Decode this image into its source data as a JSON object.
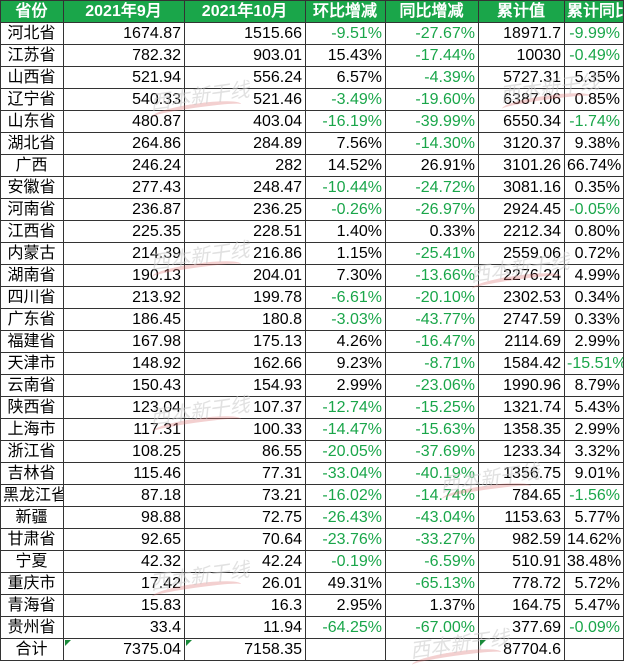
{
  "headers": [
    "省份",
    "2021年9月",
    "2021年10月",
    "环比增减",
    "同比增减",
    "累计值",
    "累计同比"
  ],
  "rows": [
    {
      "prov": "河北省",
      "sep": "1674.87",
      "oct": "1515.66",
      "mom": "-9.51%",
      "yoy": "-27.67%",
      "cum": "18971.7",
      "cum_yoy": "-9.99%"
    },
    {
      "prov": "江苏省",
      "sep": "782.32",
      "oct": "903.01",
      "mom": "15.43%",
      "yoy": "-17.44%",
      "cum": "10030",
      "cum_yoy": "-0.49%"
    },
    {
      "prov": "山西省",
      "sep": "521.94",
      "oct": "556.24",
      "mom": "6.57%",
      "yoy": "-4.39%",
      "cum": "5727.31",
      "cum_yoy": "5.35%"
    },
    {
      "prov": "辽宁省",
      "sep": "540.33",
      "oct": "521.46",
      "mom": "-3.49%",
      "yoy": "-19.60%",
      "cum": "6387.06",
      "cum_yoy": "0.85%"
    },
    {
      "prov": "山东省",
      "sep": "480.87",
      "oct": "403.04",
      "mom": "-16.19%",
      "yoy": "-39.99%",
      "cum": "6550.34",
      "cum_yoy": "-1.74%"
    },
    {
      "prov": "湖北省",
      "sep": "264.86",
      "oct": "284.89",
      "mom": "7.56%",
      "yoy": "-14.30%",
      "cum": "3120.37",
      "cum_yoy": "9.38%"
    },
    {
      "prov": "广西",
      "sep": "246.24",
      "oct": "282",
      "mom": "14.52%",
      "yoy": "26.91%",
      "cum": "3101.26",
      "cum_yoy": "66.74%"
    },
    {
      "prov": "安徽省",
      "sep": "277.43",
      "oct": "248.47",
      "mom": "-10.44%",
      "yoy": "-24.72%",
      "cum": "3081.16",
      "cum_yoy": "0.35%"
    },
    {
      "prov": "河南省",
      "sep": "236.87",
      "oct": "236.25",
      "mom": "-0.26%",
      "yoy": "-26.97%",
      "cum": "2924.45",
      "cum_yoy": "-0.05%"
    },
    {
      "prov": "江西省",
      "sep": "225.35",
      "oct": "228.51",
      "mom": "1.40%",
      "yoy": "0.33%",
      "cum": "2212.34",
      "cum_yoy": "0.80%"
    },
    {
      "prov": "内蒙古",
      "sep": "214.39",
      "oct": "216.86",
      "mom": "1.15%",
      "yoy": "-25.41%",
      "cum": "2559.06",
      "cum_yoy": "0.72%"
    },
    {
      "prov": "湖南省",
      "sep": "190.13",
      "oct": "204.01",
      "mom": "7.30%",
      "yoy": "-13.66%",
      "cum": "2276.24",
      "cum_yoy": "4.99%"
    },
    {
      "prov": "四川省",
      "sep": "213.92",
      "oct": "199.78",
      "mom": "-6.61%",
      "yoy": "-20.10%",
      "cum": "2302.53",
      "cum_yoy": "0.34%"
    },
    {
      "prov": "广东省",
      "sep": "186.45",
      "oct": "180.8",
      "mom": "-3.03%",
      "yoy": "-43.77%",
      "cum": "2747.59",
      "cum_yoy": "0.33%"
    },
    {
      "prov": "福建省",
      "sep": "167.98",
      "oct": "175.13",
      "mom": "4.26%",
      "yoy": "-16.47%",
      "cum": "2114.69",
      "cum_yoy": "2.99%"
    },
    {
      "prov": "天津市",
      "sep": "148.92",
      "oct": "162.66",
      "mom": "9.23%",
      "yoy": "-8.71%",
      "cum": "1584.42",
      "cum_yoy": "-15.51%"
    },
    {
      "prov": "云南省",
      "sep": "150.43",
      "oct": "154.93",
      "mom": "2.99%",
      "yoy": "-23.06%",
      "cum": "1990.96",
      "cum_yoy": "8.79%"
    },
    {
      "prov": "陕西省",
      "sep": "123.04",
      "oct": "107.37",
      "mom": "-12.74%",
      "yoy": "-15.25%",
      "cum": "1321.74",
      "cum_yoy": "5.43%"
    },
    {
      "prov": "上海市",
      "sep": "117.31",
      "oct": "100.33",
      "mom": "-14.47%",
      "yoy": "-15.63%",
      "cum": "1358.35",
      "cum_yoy": "2.99%"
    },
    {
      "prov": "浙江省",
      "sep": "108.25",
      "oct": "86.55",
      "mom": "-20.05%",
      "yoy": "-37.69%",
      "cum": "1233.34",
      "cum_yoy": "3.32%"
    },
    {
      "prov": "吉林省",
      "sep": "115.46",
      "oct": "77.31",
      "mom": "-33.04%",
      "yoy": "-40.19%",
      "cum": "1356.75",
      "cum_yoy": "9.01%"
    },
    {
      "prov": "黑龙江省",
      "sep": "87.18",
      "oct": "73.21",
      "mom": "-16.02%",
      "yoy": "-14.74%",
      "cum": "784.65",
      "cum_yoy": "-1.56%"
    },
    {
      "prov": "新疆",
      "sep": "98.88",
      "oct": "72.75",
      "mom": "-26.43%",
      "yoy": "-43.04%",
      "cum": "1153.63",
      "cum_yoy": "5.77%"
    },
    {
      "prov": "甘肃省",
      "sep": "92.65",
      "oct": "70.64",
      "mom": "-23.76%",
      "yoy": "-33.27%",
      "cum": "982.59",
      "cum_yoy": "14.62%"
    },
    {
      "prov": "宁夏",
      "sep": "42.32",
      "oct": "42.24",
      "mom": "-0.19%",
      "yoy": "-6.59%",
      "cum": "510.91",
      "cum_yoy": "38.48%"
    },
    {
      "prov": "重庆市",
      "sep": "17.42",
      "oct": "26.01",
      "mom": "49.31%",
      "yoy": "-65.13%",
      "cum": "778.72",
      "cum_yoy": "5.72%"
    },
    {
      "prov": "青海省",
      "sep": "15.83",
      "oct": "16.3",
      "mom": "2.95%",
      "yoy": "1.37%",
      "cum": "164.75",
      "cum_yoy": "5.47%"
    },
    {
      "prov": "贵州省",
      "sep": "33.4",
      "oct": "11.94",
      "mom": "-64.25%",
      "yoy": "-67.00%",
      "cum": "377.69",
      "cum_yoy": "-0.09%"
    }
  ],
  "total": {
    "prov": "合计",
    "sep": "7375.04",
    "oct": "7158.35",
    "mom": "",
    "yoy": "",
    "cum": "87704.6",
    "cum_yoy": ""
  },
  "watermark": "西本新干线",
  "colors": {
    "header_bg": "#1aa64a",
    "negative": "#1aa64a",
    "text": "#000000"
  }
}
